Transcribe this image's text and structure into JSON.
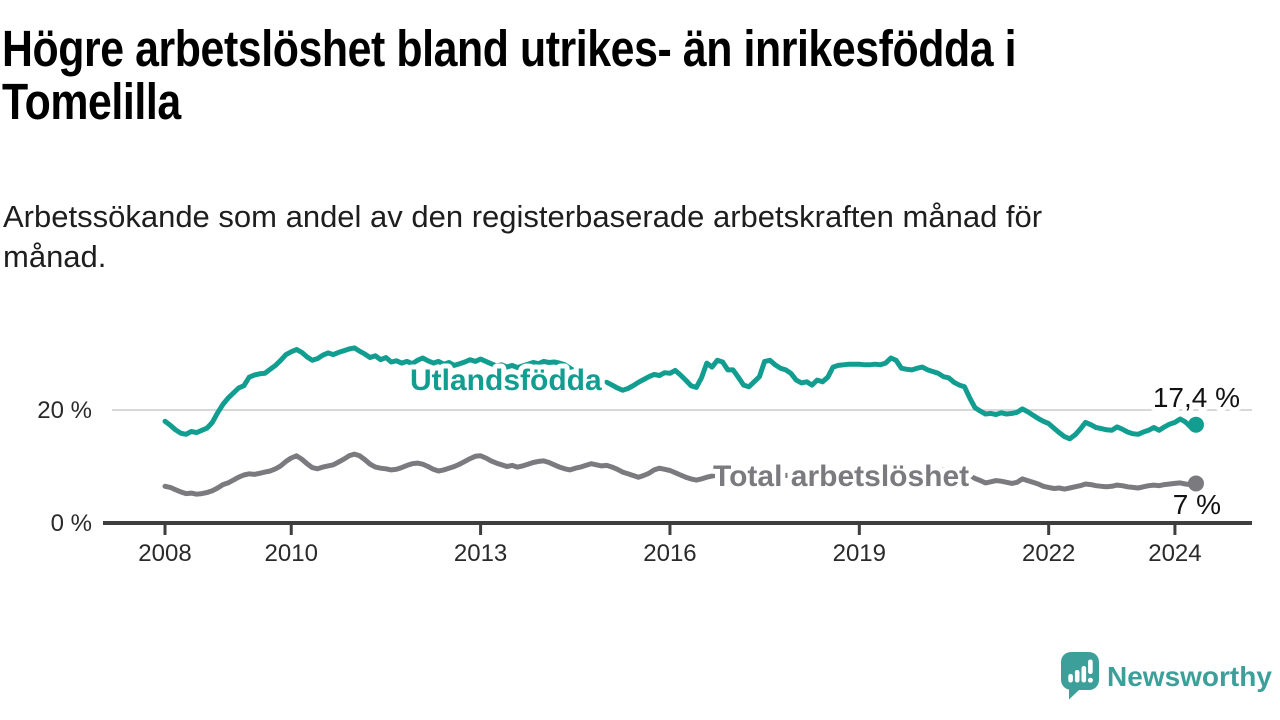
{
  "header": {
    "title_line1": "Högre arbetslöshet bland utrikes- än inrikesfödda i",
    "title_line2": "Tomelilla",
    "subtitle_line1": "Arbetssökande som andel av den registerbaserade arbetskraften månad för",
    "subtitle_line2": "månad."
  },
  "footer": {
    "brand": "Newsworthy",
    "logo_icon": "speech-bubble-bar-chart-icon"
  },
  "colors": {
    "teal": "#119e91",
    "gray": "#7b7b7f",
    "axis": "#3e3e3e",
    "tick_text": "#2a2a2a",
    "grid": "#d8d8d8",
    "value_text": "#121212",
    "brand_teal": "#3d9f99",
    "halo": "#ffffff"
  },
  "chart_data": {
    "type": "line",
    "title": "Högre arbetslöshet bland utrikes- än inrikesfödda i Tomelilla",
    "subtitle": "Arbetssökande som andel av den registerbaserade arbetskraften månad för månad.",
    "x_unit": "month",
    "x_start": "2008-01",
    "x_end": "2024-05",
    "y_unit": "%",
    "ylim": [
      0,
      32
    ],
    "grid": "horizontal line at 20% only",
    "legend_position": "inline labels on lines",
    "yticks": [
      {
        "value": 0,
        "label": "0 %"
      },
      {
        "value": 20,
        "label": "20 %"
      }
    ],
    "xticks": [
      {
        "year": 2008,
        "label": "2008"
      },
      {
        "year": 2010,
        "label": "2010"
      },
      {
        "year": 2013,
        "label": "2013"
      },
      {
        "year": 2016,
        "label": "2016"
      },
      {
        "year": 2019,
        "label": "2019"
      },
      {
        "year": 2022,
        "label": "2022"
      },
      {
        "year": 2024,
        "label": "2024"
      }
    ],
    "series": [
      {
        "name": "Utlandsfödda",
        "color": "#119e91",
        "end_label": "17,4 %",
        "end_value": 17.4,
        "values": [
          18.0,
          17.3,
          16.5,
          15.9,
          15.7,
          16.2,
          16.0,
          16.4,
          16.8,
          17.8,
          19.5,
          21.0,
          22.1,
          23.0,
          23.9,
          24.3,
          25.8,
          26.2,
          26.4,
          26.5,
          27.2,
          27.9,
          28.8,
          29.8,
          30.3,
          30.7,
          30.2,
          29.4,
          28.8,
          29.1,
          29.7,
          30.1,
          29.8,
          30.2,
          30.5,
          30.8,
          31.0,
          30.4,
          29.9,
          29.3,
          29.6,
          28.9,
          29.3,
          28.5,
          28.7,
          28.3,
          28.6,
          28.2,
          28.8,
          29.2,
          28.7,
          28.3,
          28.6,
          28.1,
          28.4,
          27.9,
          28.2,
          28.5,
          28.9,
          28.6,
          29.0,
          28.6,
          28.2,
          27.8,
          28.0,
          27.6,
          27.9,
          27.5,
          27.8,
          28.1,
          28.4,
          28.2,
          28.6,
          28.4,
          28.5,
          28.3,
          28.0,
          27.4,
          26.8,
          26.2,
          25.6,
          25.2,
          24.8,
          24.6,
          24.9,
          24.4,
          23.9,
          23.5,
          23.8,
          24.3,
          24.9,
          25.4,
          25.9,
          26.3,
          26.1,
          26.6,
          26.5,
          27.0,
          26.2,
          25.3,
          24.3,
          24.0,
          25.7,
          28.3,
          27.6,
          28.8,
          28.5,
          27.1,
          27.1,
          25.8,
          24.4,
          24.1,
          25.0,
          25.9,
          28.6,
          28.8,
          28.0,
          27.4,
          27.1,
          26.5,
          25.3,
          24.8,
          25.0,
          24.4,
          25.3,
          25.0,
          25.8,
          27.6,
          27.9,
          28.0,
          28.1,
          28.1,
          28.1,
          28.0,
          28.0,
          28.1,
          28.0,
          28.3,
          29.2,
          28.8,
          27.4,
          27.2,
          27.1,
          27.4,
          27.6,
          27.1,
          26.8,
          26.5,
          25.9,
          25.7,
          24.9,
          24.4,
          24.1,
          22.1,
          20.4,
          19.8,
          19.3,
          19.4,
          19.2,
          19.5,
          19.3,
          19.4,
          19.6,
          20.2,
          19.7,
          19.1,
          18.5,
          18.0,
          17.6,
          16.8,
          16.0,
          15.3,
          14.9,
          15.6,
          16.6,
          17.8,
          17.4,
          16.9,
          16.7,
          16.5,
          16.4,
          17.0,
          16.6,
          16.1,
          15.8,
          15.7,
          16.1,
          16.4,
          16.9,
          16.4,
          17.0,
          17.5,
          17.8,
          18.4,
          17.9,
          17.0,
          17.4
        ]
      },
      {
        "name": "Total arbetslöshet",
        "color": "#7b7b7f",
        "end_label": "7 %",
        "end_value": 7.0,
        "values": [
          6.5,
          6.3,
          5.9,
          5.5,
          5.2,
          5.3,
          5.1,
          5.2,
          5.4,
          5.7,
          6.2,
          6.8,
          7.1,
          7.6,
          8.1,
          8.5,
          8.7,
          8.6,
          8.8,
          9.0,
          9.2,
          9.6,
          10.1,
          10.9,
          11.5,
          11.9,
          11.3,
          10.5,
          9.8,
          9.6,
          9.9,
          10.1,
          10.3,
          10.8,
          11.3,
          11.9,
          12.2,
          11.9,
          11.2,
          10.4,
          9.9,
          9.7,
          9.6,
          9.4,
          9.5,
          9.8,
          10.2,
          10.5,
          10.6,
          10.4,
          10.0,
          9.5,
          9.2,
          9.4,
          9.7,
          10.0,
          10.4,
          10.9,
          11.4,
          11.8,
          11.9,
          11.5,
          11.0,
          10.6,
          10.3,
          10.0,
          10.2,
          9.9,
          10.1,
          10.4,
          10.7,
          10.9,
          11.0,
          10.7,
          10.3,
          9.9,
          9.6,
          9.4,
          9.7,
          9.9,
          10.2,
          10.5,
          10.3,
          10.1,
          10.2,
          9.9,
          9.5,
          9.0,
          8.7,
          8.4,
          8.1,
          8.4,
          8.8,
          9.4,
          9.7,
          9.5,
          9.3,
          8.9,
          8.5,
          8.1,
          7.8,
          7.6,
          7.8,
          8.1,
          8.3,
          8.5,
          8.6,
          8.7,
          8.6,
          8.4,
          8.1,
          7.8,
          7.6,
          7.4,
          7.6,
          7.8,
          8.0,
          8.2,
          8.4,
          8.5,
          8.4,
          8.2,
          7.9,
          7.6,
          7.3,
          7.1,
          7.3,
          7.5,
          7.7,
          7.9,
          8.0,
          8.1,
          8.0,
          7.8,
          7.6,
          7.4,
          7.2,
          7.1,
          7.3,
          7.5,
          7.7,
          7.9,
          8.1,
          8.3,
          8.5,
          8.6,
          8.8,
          9.2,
          9.4,
          9.3,
          9.1,
          8.9,
          8.6,
          8.3,
          7.9,
          7.5,
          7.1,
          7.3,
          7.5,
          7.4,
          7.2,
          7.0,
          7.2,
          7.8,
          7.5,
          7.2,
          6.9,
          6.5,
          6.3,
          6.1,
          6.2,
          6.0,
          6.2,
          6.4,
          6.6,
          6.9,
          6.8,
          6.6,
          6.5,
          6.4,
          6.5,
          6.7,
          6.6,
          6.4,
          6.3,
          6.2,
          6.4,
          6.6,
          6.7,
          6.6,
          6.8,
          6.9,
          7.0,
          7.1,
          6.9,
          6.8,
          7.0
        ]
      }
    ]
  }
}
